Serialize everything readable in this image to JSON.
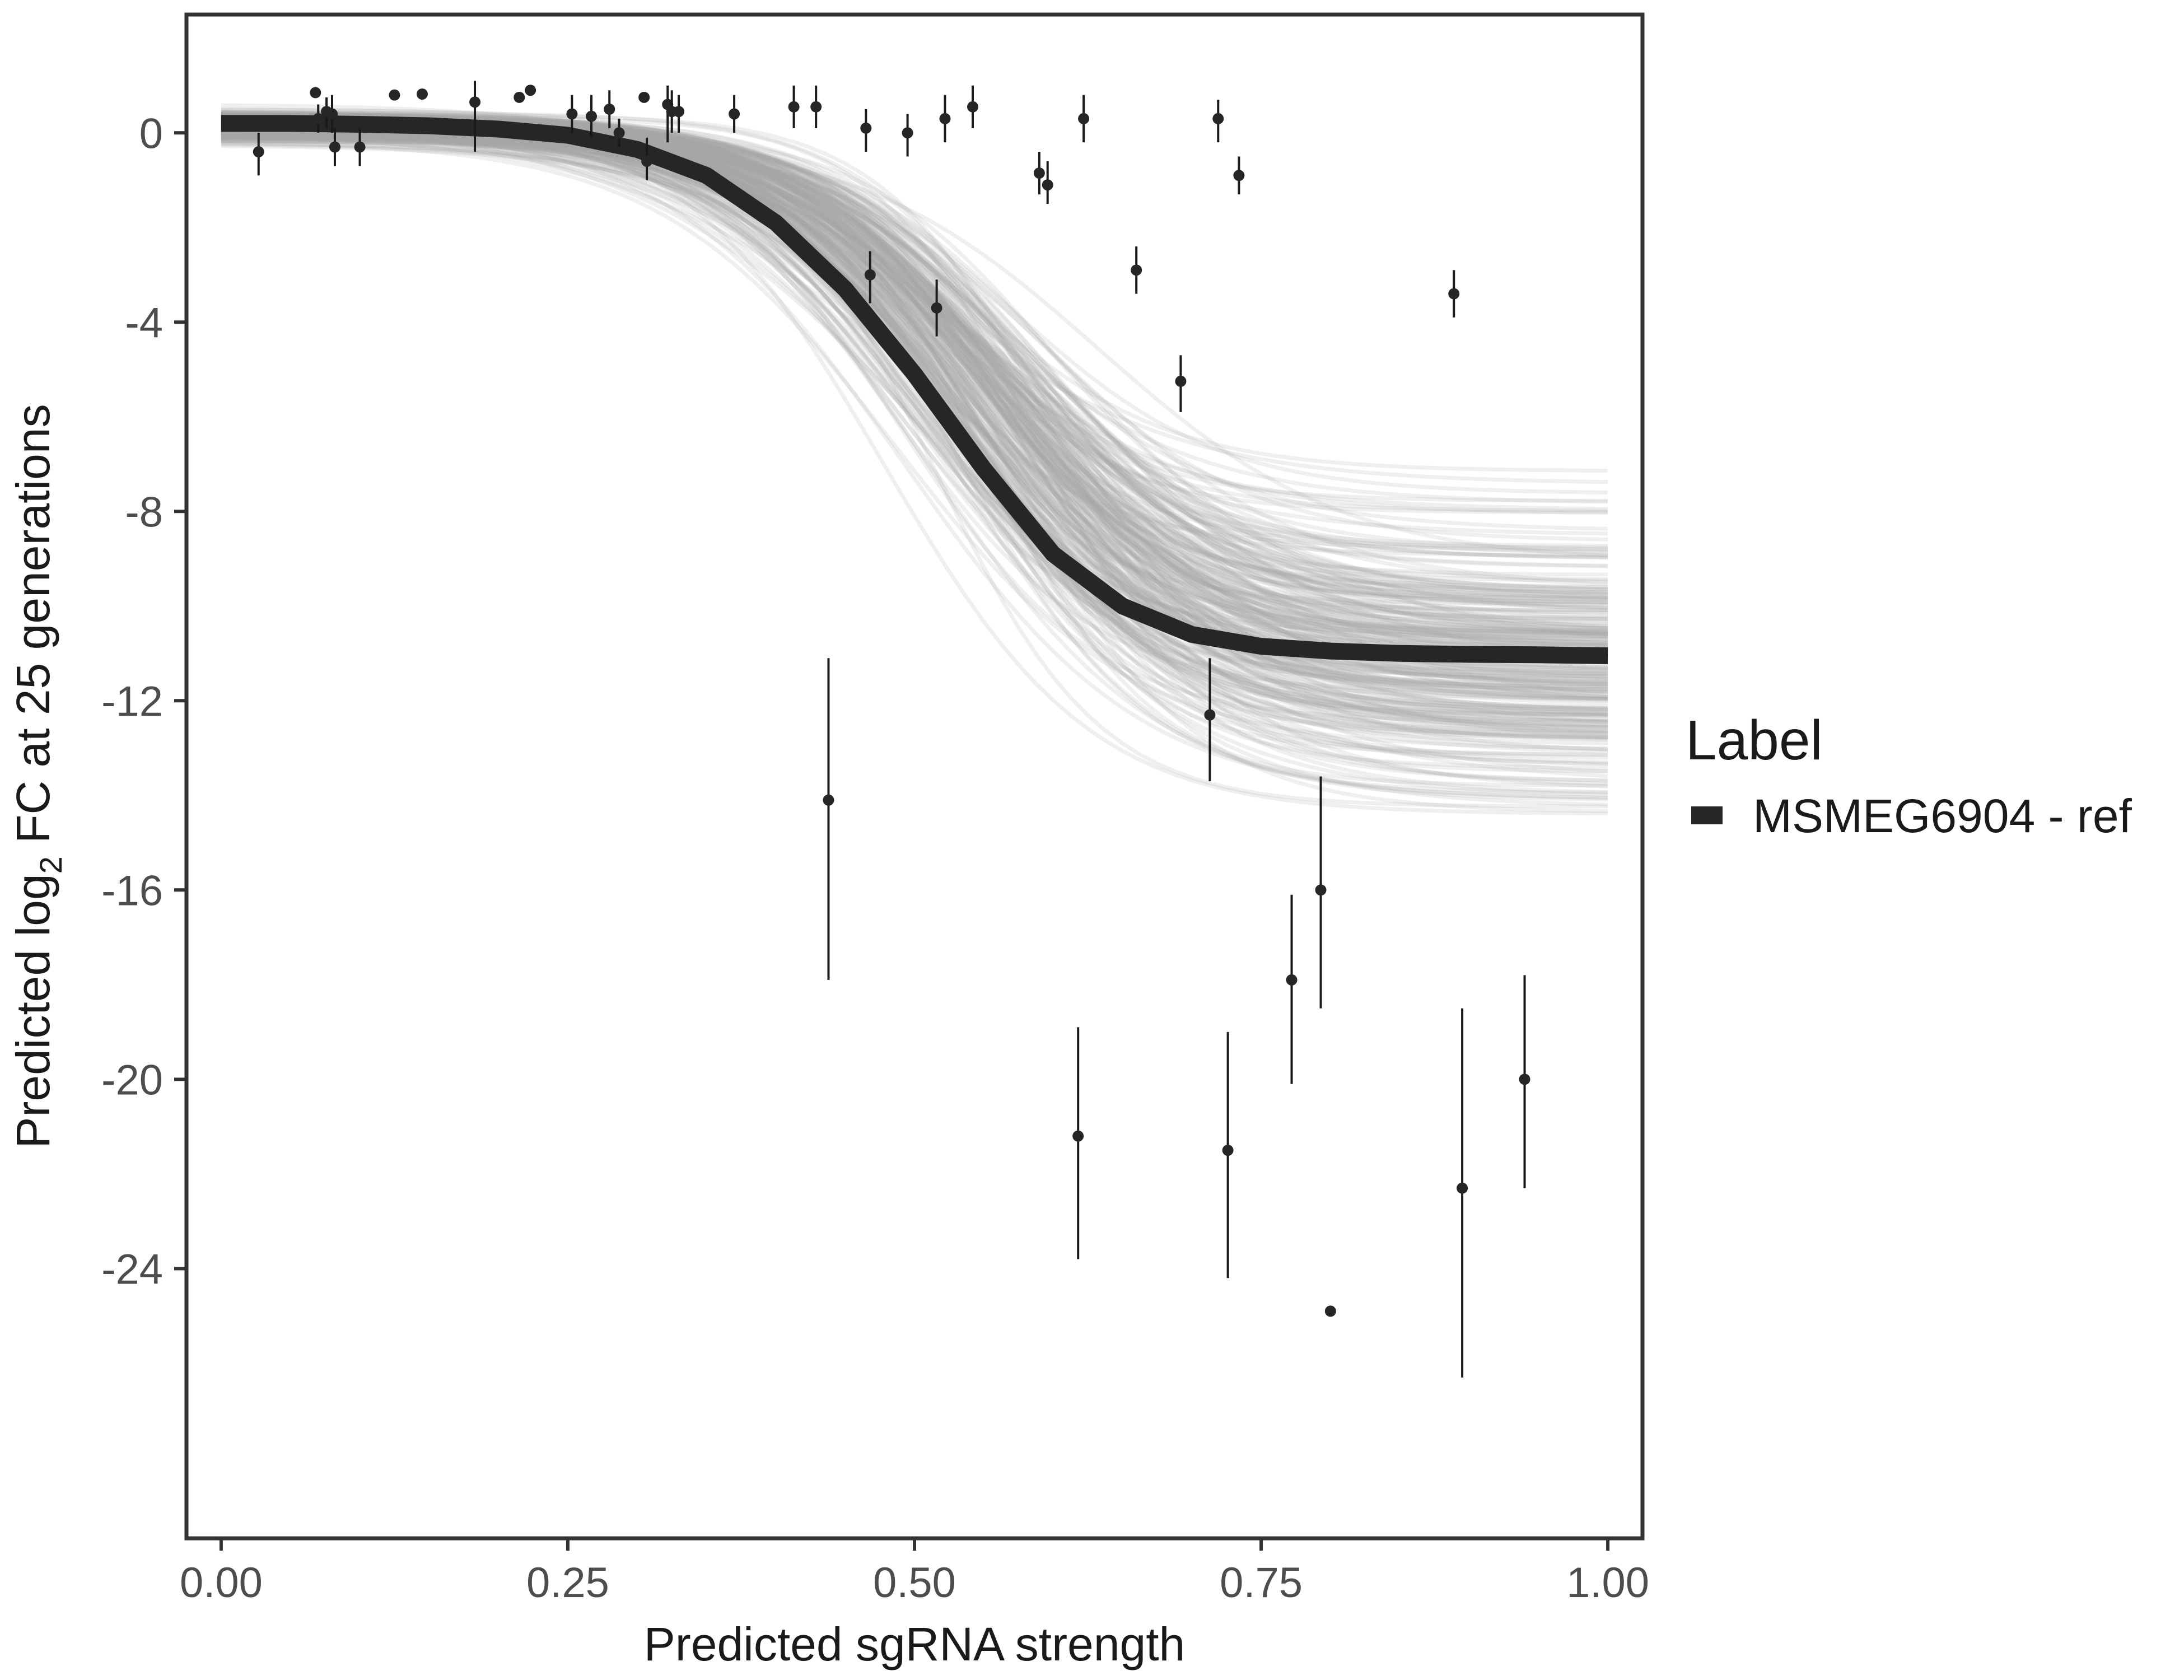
{
  "chart_data": {
    "type": "line",
    "title": "",
    "xlabel": "Predicted sgRNA strength",
    "ylabel_prefix": "Predicted  log",
    "ylabel_subscript": "2",
    "ylabel_suffix": " FC at 25 generations",
    "xlim": [
      -0.025,
      1.025
    ],
    "ylim": [
      -29.7,
      2.5
    ],
    "x_ticks": [
      0.0,
      0.25,
      0.5,
      0.75,
      1.0
    ],
    "x_tick_labels": [
      "0.00",
      "0.25",
      "0.50",
      "0.75",
      "1.00"
    ],
    "y_ticks": [
      0,
      -4,
      -8,
      -12,
      -16,
      -20,
      -24
    ],
    "y_tick_labels": [
      "0",
      "-4",
      "-8",
      "-12",
      "-16",
      "-20",
      "-24"
    ],
    "grid": false,
    "legend": {
      "title": "Label",
      "position": "right",
      "entries": [
        {
          "label": "MSMEG6904 - ref",
          "color": "#262626"
        }
      ]
    },
    "fitted_curve": {
      "name": "MSMEG6904 - ref",
      "x": [
        0.0,
        0.05,
        0.1,
        0.15,
        0.2,
        0.25,
        0.3,
        0.35,
        0.4,
        0.45,
        0.5,
        0.55,
        0.6,
        0.65,
        0.7,
        0.75,
        0.8,
        0.85,
        0.9,
        0.95,
        1.0
      ],
      "y": [
        0.2,
        0.2,
        0.18,
        0.15,
        0.08,
        -0.05,
        -0.35,
        -0.9,
        -1.9,
        -3.3,
        -5.1,
        -7.1,
        -8.9,
        -10.0,
        -10.6,
        -10.85,
        -10.95,
        -11.0,
        -11.02,
        -11.03,
        -11.05
      ],
      "color": "#262626"
    },
    "posterior_draws": {
      "count": 260,
      "color": "#a6a6a6",
      "description_free": true
    },
    "series": [
      {
        "name": "observations",
        "type": "scatter_errorbar",
        "points": [
          {
            "x": 0.027,
            "y": -0.4,
            "lo": -0.9,
            "hi": 0.0
          },
          {
            "x": 0.068,
            "y": 0.85,
            "lo": 0.85,
            "hi": 0.85
          },
          {
            "x": 0.07,
            "y": 0.3,
            "lo": 0.0,
            "hi": 0.6
          },
          {
            "x": 0.076,
            "y": 0.45,
            "lo": 0.1,
            "hi": 0.75
          },
          {
            "x": 0.08,
            "y": 0.4,
            "lo": 0.0,
            "hi": 0.8
          },
          {
            "x": 0.082,
            "y": -0.3,
            "lo": -0.7,
            "hi": 0.1
          },
          {
            "x": 0.1,
            "y": -0.3,
            "lo": -0.7,
            "hi": 0.1
          },
          {
            "x": 0.125,
            "y": 0.8,
            "lo": 0.8,
            "hi": 0.8
          },
          {
            "x": 0.145,
            "y": 0.82,
            "lo": 0.82,
            "hi": 0.82
          },
          {
            "x": 0.183,
            "y": 0.65,
            "lo": -0.4,
            "hi": 1.1
          },
          {
            "x": 0.215,
            "y": 0.75,
            "lo": 0.75,
            "hi": 0.75
          },
          {
            "x": 0.223,
            "y": 0.9,
            "lo": 0.9,
            "hi": 0.9
          },
          {
            "x": 0.253,
            "y": 0.4,
            "lo": 0.0,
            "hi": 0.8
          },
          {
            "x": 0.267,
            "y": 0.35,
            "lo": -0.1,
            "hi": 0.8
          },
          {
            "x": 0.28,
            "y": 0.5,
            "lo": 0.1,
            "hi": 0.9
          },
          {
            "x": 0.287,
            "y": 0.0,
            "lo": -0.3,
            "hi": 0.3
          },
          {
            "x": 0.305,
            "y": 0.75,
            "lo": 0.75,
            "hi": 0.75
          },
          {
            "x": 0.307,
            "y": -0.6,
            "lo": -1.0,
            "hi": -0.1
          },
          {
            "x": 0.322,
            "y": 0.6,
            "lo": -0.2,
            "hi": 1.0
          },
          {
            "x": 0.325,
            "y": 0.45,
            "lo": 0.0,
            "hi": 0.9
          },
          {
            "x": 0.33,
            "y": 0.45,
            "lo": 0.0,
            "hi": 0.8
          },
          {
            "x": 0.37,
            "y": 0.4,
            "lo": 0.0,
            "hi": 0.8
          },
          {
            "x": 0.413,
            "y": 0.55,
            "lo": 0.1,
            "hi": 1.0
          },
          {
            "x": 0.429,
            "y": 0.55,
            "lo": 0.1,
            "hi": 1.0
          },
          {
            "x": 0.438,
            "y": -14.1,
            "lo": -17.9,
            "hi": -11.1
          },
          {
            "x": 0.465,
            "y": 0.1,
            "lo": -0.4,
            "hi": 0.5
          },
          {
            "x": 0.468,
            "y": -3.0,
            "lo": -3.6,
            "hi": -2.5
          },
          {
            "x": 0.495,
            "y": 0.0,
            "lo": -0.5,
            "hi": 0.4
          },
          {
            "x": 0.516,
            "y": -3.7,
            "lo": -4.3,
            "hi": -3.1
          },
          {
            "x": 0.522,
            "y": 0.3,
            "lo": -0.2,
            "hi": 0.8
          },
          {
            "x": 0.542,
            "y": 0.55,
            "lo": 0.1,
            "hi": 1.0
          },
          {
            "x": 0.59,
            "y": -0.85,
            "lo": -1.3,
            "hi": -0.4
          },
          {
            "x": 0.596,
            "y": -1.1,
            "lo": -1.5,
            "hi": -0.6
          },
          {
            "x": 0.618,
            "y": -21.2,
            "lo": -23.8,
            "hi": -18.9
          },
          {
            "x": 0.622,
            "y": 0.3,
            "lo": -0.2,
            "hi": 0.8
          },
          {
            "x": 0.66,
            "y": -2.9,
            "lo": -3.4,
            "hi": -2.4
          },
          {
            "x": 0.692,
            "y": -5.25,
            "lo": -5.9,
            "hi": -4.7
          },
          {
            "x": 0.713,
            "y": -12.3,
            "lo": -13.7,
            "hi": -11.1
          },
          {
            "x": 0.719,
            "y": 0.3,
            "lo": -0.2,
            "hi": 0.7
          },
          {
            "x": 0.726,
            "y": -21.5,
            "lo": -24.2,
            "hi": -19.0
          },
          {
            "x": 0.734,
            "y": -0.9,
            "lo": -1.3,
            "hi": -0.5
          },
          {
            "x": 0.772,
            "y": -17.9,
            "lo": -20.1,
            "hi": -16.1
          },
          {
            "x": 0.793,
            "y": -16.0,
            "lo": -18.5,
            "hi": -13.6
          },
          {
            "x": 0.8,
            "y": -24.9,
            "lo": -24.9,
            "hi": -24.9
          },
          {
            "x": 0.889,
            "y": -3.4,
            "lo": -3.9,
            "hi": -2.9
          },
          {
            "x": 0.895,
            "y": -22.3,
            "lo": -26.3,
            "hi": -18.5
          },
          {
            "x": 0.94,
            "y": -20.0,
            "lo": -22.3,
            "hi": -17.8
          }
        ]
      }
    ]
  }
}
